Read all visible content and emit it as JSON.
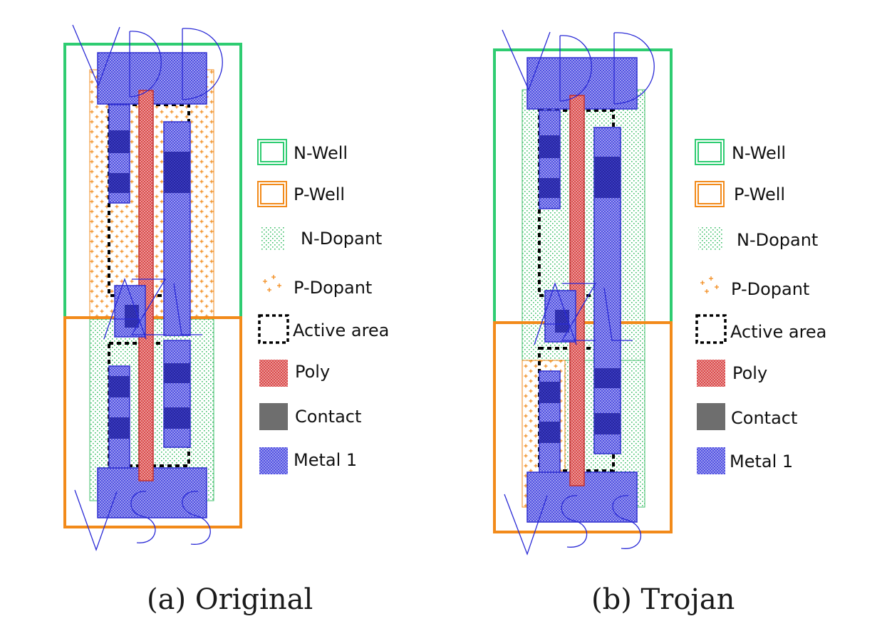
{
  "legend": [
    {
      "key": "nwell",
      "label": "N-Well"
    },
    {
      "key": "pwell",
      "label": "P-Well"
    },
    {
      "key": "ndopant",
      "label": "N-Dopant"
    },
    {
      "key": "pdopant",
      "label": "P-Dopant"
    },
    {
      "key": "active",
      "label": "Active area"
    },
    {
      "key": "poly",
      "label": "Poly"
    },
    {
      "key": "contact",
      "label": "Contact"
    },
    {
      "key": "metal1",
      "label": "Metal 1"
    }
  ],
  "panels": [
    {
      "id": "original",
      "caption": "(a) Original",
      "rail_top": "VDD",
      "rail_bottom": "VSS"
    },
    {
      "id": "trojan",
      "caption": "(b) Trojan",
      "rail_top": "VDD",
      "rail_bottom": "VSS"
    }
  ],
  "colors": {
    "nwell": "#2ecc71",
    "pwell": "#f28a1a",
    "ndopant": "#3fbf6a",
    "pdopant": "#f28a1a",
    "poly": "#e05a5a",
    "metal1": "#5a5ae6",
    "contact": "#6e6e6e",
    "label_lines": "#2a2ad6"
  }
}
